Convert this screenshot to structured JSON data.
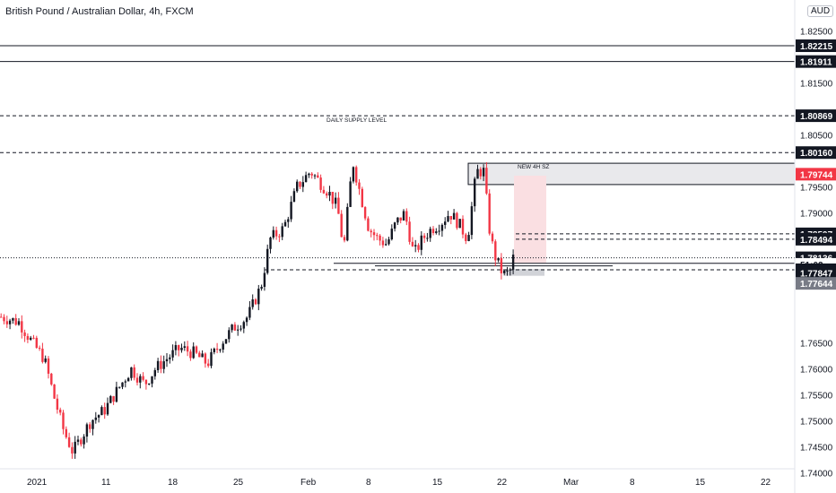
{
  "header": {
    "title": "British Pound / Australian Dollar, 4h, FXCM",
    "currency": "AUD"
  },
  "annotations": {
    "supply_label": "DAILY SUPPLY LEVEL",
    "new_zone_label": "NEW 4H SZ"
  },
  "chart_data": {
    "type": "candlestick",
    "title": "British Pound / Australian Dollar, 4h, FXCM",
    "y_unit": "AUD",
    "ylim": [
      1.7375,
      1.8265
    ],
    "y_ticks": [
      "1.82500",
      "1.81500",
      "1.80500",
      "1.79500",
      "1.79000",
      "1.76500",
      "1.76000",
      "1.75500",
      "1.75000",
      "1.74500",
      "1.74000"
    ],
    "x_ticks": [
      "2021",
      "11",
      "18",
      "25",
      "Feb",
      "8",
      "15",
      "22",
      "Mar",
      "8",
      "15",
      "22"
    ],
    "price_path": [
      [
        0,
        1.77
      ],
      [
        20,
        1.769
      ],
      [
        35,
        1.765
      ],
      [
        48,
        1.762
      ],
      [
        60,
        1.754
      ],
      [
        70,
        1.748
      ],
      [
        80,
        1.744
      ],
      [
        90,
        1.747
      ],
      [
        100,
        1.75
      ],
      [
        115,
        1.752
      ],
      [
        130,
        1.756
      ],
      [
        145,
        1.76
      ],
      [
        160,
        1.757
      ],
      [
        172,
        1.76
      ],
      [
        185,
        1.762
      ],
      [
        200,
        1.764
      ],
      [
        215,
        1.763
      ],
      [
        230,
        1.761
      ],
      [
        245,
        1.765
      ],
      [
        260,
        1.768
      ],
      [
        275,
        1.77
      ],
      [
        290,
        1.776
      ],
      [
        300,
        1.785
      ],
      [
        315,
        1.787
      ],
      [
        330,
        1.795
      ],
      [
        345,
        1.798
      ],
      [
        355,
        1.796
      ],
      [
        365,
        1.794
      ],
      [
        375,
        1.791
      ],
      [
        382,
        1.783
      ],
      [
        392,
        1.8
      ],
      [
        400,
        1.794
      ],
      [
        410,
        1.787
      ],
      [
        420,
        1.785
      ],
      [
        430,
        1.784
      ],
      [
        440,
        1.788
      ],
      [
        450,
        1.79
      ],
      [
        460,
        1.782
      ],
      [
        470,
        1.785
      ],
      [
        480,
        1.787
      ],
      [
        490,
        1.788
      ],
      [
        500,
        1.79
      ],
      [
        510,
        1.788
      ],
      [
        520,
        1.785
      ],
      [
        530,
        1.798
      ],
      [
        538,
        1.798
      ],
      [
        545,
        1.786
      ],
      [
        550,
        1.782
      ],
      [
        557,
        1.779
      ],
      [
        562,
        1.778
      ],
      [
        568,
        1.779
      ],
      [
        573,
        1.783
      ]
    ],
    "horizontal_levels": [
      {
        "price": 1.82215,
        "style": "solid"
      },
      {
        "price": 1.81911,
        "style": "solid"
      },
      {
        "price": 1.80869,
        "style": "dashed"
      },
      {
        "price": 1.8016,
        "style": "dashed"
      },
      {
        "price": 1.78597,
        "style": "dashed"
      },
      {
        "price": 1.78494,
        "style": "dashed"
      },
      {
        "price": 1.78136,
        "style": "dotted"
      },
      {
        "price": 1.77906,
        "style": "dashed"
      }
    ],
    "zones": [
      {
        "name": "supply",
        "top": 1.79955,
        "bottom": 1.79545,
        "x_from": 522,
        "x_to": 886,
        "color": "#e9e9ec"
      },
      {
        "name": "new_4h_sz",
        "top": 1.79715,
        "bottom": 1.7804,
        "x_from": 573,
        "x_to": 609,
        "color": "#fadfe2"
      }
    ],
    "price_badges": [
      {
        "value": "1.82215",
        "price": 1.82215,
        "bg": "#131722",
        "fg": "#ffffff"
      },
      {
        "value": "1.81911",
        "price": 1.81911,
        "bg": "#131722",
        "fg": "#ffffff"
      },
      {
        "value": "1.80869",
        "price": 1.80869,
        "bg": "#131722",
        "fg": "#ffffff"
      },
      {
        "value": "1.80160",
        "price": 1.8016,
        "bg": "#131722",
        "fg": "#ffffff"
      },
      {
        "value": "1.79744",
        "price": 1.79744,
        "bg": "#f23645",
        "fg": "#ffffff"
      },
      {
        "value": "1.78597",
        "price": 1.78597,
        "bg": "#131722",
        "fg": "#ffffff"
      },
      {
        "value": "1.78494",
        "price": 1.78494,
        "bg": "#131722",
        "fg": "#ffffff"
      },
      {
        "value": "1.78136",
        "price": 1.78136,
        "bg": "#131722",
        "fg": "#ffffff"
      },
      {
        "value": "51:02",
        "price": 1.7801,
        "bg": "#ffffff",
        "fg": "#131722"
      },
      {
        "value": "1.77906",
        "price": 1.77906,
        "bg": "#131722",
        "fg": "#ffffff"
      },
      {
        "value": "1.77847",
        "price": 1.77847,
        "bg": "#131722",
        "fg": "#ffffff"
      },
      {
        "value": "1.77644",
        "price": 1.77644,
        "bg": "#787b86",
        "fg": "#ffffff"
      }
    ],
    "colors": {
      "up": "#131722",
      "down": "#f23645",
      "grid": "none"
    }
  }
}
